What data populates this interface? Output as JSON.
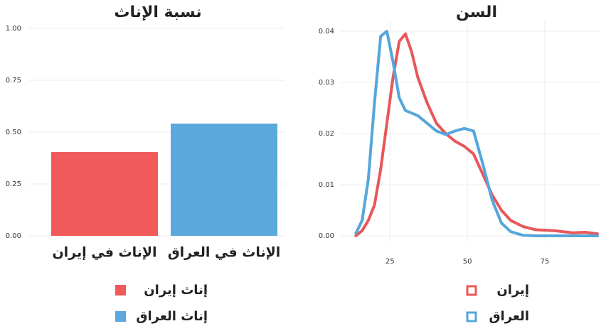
{
  "chart_data": [
    {
      "type": "bar",
      "title": "نسبة الإناث",
      "categories": [
        "الإناث في إيران",
        "الإناث في العراق"
      ],
      "series": [
        {
          "name": "إناث إيران",
          "color": "#f05a5a",
          "values": [
            0.404,
            null
          ]
        },
        {
          "name": "إناث العراق",
          "color": "#5aa8dc",
          "values": [
            null,
            0.541
          ]
        }
      ],
      "ylim": [
        0,
        1
      ],
      "yticks": [
        {
          "value": 0,
          "label": "0.00"
        },
        {
          "value": 0.25,
          "label": "0.25"
        },
        {
          "value": 0.5,
          "label": "0.50"
        },
        {
          "value": 0.75,
          "label": "0.75"
        },
        {
          "value": 1,
          "label": "1.00"
        }
      ],
      "grid": true
    },
    {
      "type": "line",
      "title": "السن",
      "x": [
        14,
        16,
        18,
        20,
        22,
        24,
        26,
        28,
        30,
        32,
        34,
        37,
        40,
        43,
        46,
        49,
        52,
        55,
        58,
        61,
        64,
        68,
        72,
        78,
        84,
        88,
        92
      ],
      "series": [
        {
          "name": "إيران",
          "color": "#e8575a",
          "values": [
            0,
            0.001,
            0.003,
            0.006,
            0.013,
            0.022,
            0.031,
            0.038,
            0.0395,
            0.036,
            0.031,
            0.026,
            0.022,
            0.02,
            0.0185,
            0.0175,
            0.016,
            0.012,
            0.008,
            0.005,
            0.003,
            0.0018,
            0.0012,
            0.001,
            0.0006,
            0.0007,
            0.0004
          ]
        },
        {
          "name": "العراق",
          "color": "#56a6da",
          "values": [
            0.0005,
            0.003,
            0.011,
            0.026,
            0.039,
            0.04,
            0.034,
            0.027,
            0.0245,
            0.024,
            0.0235,
            0.022,
            0.0205,
            0.0198,
            0.0205,
            0.021,
            0.0205,
            0.014,
            0.007,
            0.0025,
            0.0008,
            0.0001,
            0,
            0,
            0,
            0,
            0
          ]
        }
      ],
      "xlim": [
        13,
        92
      ],
      "xticks": [
        25,
        50,
        75
      ],
      "ylim": [
        0,
        0.0415
      ],
      "yticks": [
        {
          "value": 0,
          "label": "0.00"
        },
        {
          "value": 0.01,
          "label": "0.01"
        },
        {
          "value": 0.02,
          "label": "0.02"
        },
        {
          "value": 0.03,
          "label": "0.03"
        },
        {
          "value": 0.04,
          "label": "0.04"
        }
      ],
      "grid": true
    }
  ]
}
